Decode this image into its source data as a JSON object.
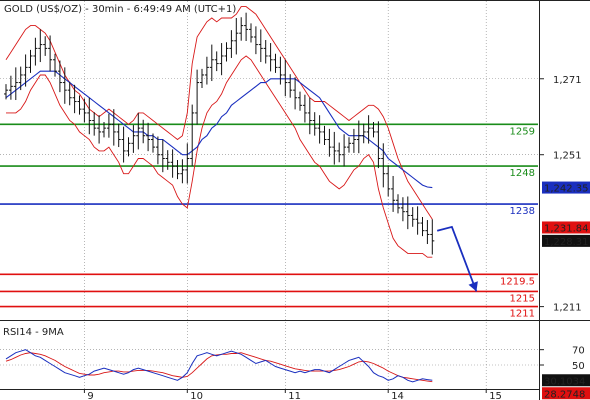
{
  "chart_data": [
    {
      "type": "candlestick",
      "title": "GOLD (US$/OZ) - 30min - 6:49:49 AM (UTC+1)",
      "ylim": [
        1208,
        1287
      ],
      "y_ticks": [
        {
          "value": 1271,
          "label": "1,271"
        },
        {
          "value": 1251,
          "label": "1,251"
        },
        {
          "value": 1211,
          "label": "1,211"
        }
      ],
      "x_ticks": [
        {
          "index": 16,
          "label": "9"
        },
        {
          "index": 37,
          "label": "10"
        },
        {
          "index": 57,
          "label": "11"
        },
        {
          "index": 78,
          "label": "14"
        },
        {
          "index": 98,
          "label": "15"
        }
      ],
      "levels": [
        {
          "name": "resistance-1259",
          "value": 1259,
          "label": "1259",
          "color": "#1a8c1a"
        },
        {
          "name": "resistance-1248",
          "value": 1248,
          "label": "1248",
          "color": "#1a8c1a"
        },
        {
          "name": "pivot-1238",
          "value": 1238,
          "label": "1238",
          "color": "#1a2fbf"
        },
        {
          "name": "support-1219-5",
          "value": 1219.5,
          "label": "1219.5",
          "color": "#e01010"
        },
        {
          "name": "support-1215",
          "value": 1215,
          "label": "1215",
          "color": "#e01010"
        },
        {
          "name": "support-1211",
          "value": 1211,
          "label": "1211",
          "color": "#e01010"
        }
      ],
      "price_badges": [
        {
          "name": "ma-badge",
          "value": 1242.35,
          "label": "1,242.35",
          "bg": "#1a2fbf",
          "fg": "#ffffff"
        },
        {
          "name": "bollinger-badge",
          "value": 1231.84,
          "label": "1,231.84",
          "bg": "#e01010",
          "fg": "#ffffff"
        },
        {
          "name": "last-price-badge",
          "value": 1228.31,
          "label": "1,228.31",
          "bg": "#111111",
          "fg": "#ffffff"
        }
      ],
      "close": [
        1268,
        1269,
        1270,
        1272,
        1274,
        1277,
        1279,
        1280,
        1279,
        1276,
        1273,
        1270,
        1268,
        1266,
        1265,
        1263,
        1262,
        1260,
        1258,
        1257,
        1258,
        1259,
        1257,
        1255,
        1252,
        1254,
        1256,
        1258,
        1256,
        1255,
        1253,
        1251,
        1250,
        1249,
        1248,
        1246,
        1247,
        1250,
        1262,
        1270,
        1272,
        1274,
        1276,
        1275,
        1277,
        1279,
        1281,
        1283,
        1285,
        1284,
        1282,
        1280,
        1279,
        1277,
        1276,
        1274,
        1272,
        1270,
        1268,
        1266,
        1264,
        1262,
        1260,
        1258,
        1257,
        1255,
        1253,
        1252,
        1251,
        1253,
        1254,
        1255,
        1256,
        1257,
        1258,
        1257,
        1250,
        1246,
        1242,
        1239,
        1237,
        1236,
        1235,
        1234,
        1233,
        1231,
        1230,
        1228.31
      ],
      "upper_band": [
        1276,
        1278,
        1280,
        1282,
        1284,
        1285,
        1285,
        1284,
        1283,
        1281,
        1278,
        1275,
        1272,
        1270,
        1268,
        1267,
        1265,
        1263,
        1262,
        1261,
        1262,
        1263,
        1262,
        1261,
        1260,
        1259,
        1260,
        1262,
        1262,
        1261,
        1260,
        1259,
        1258,
        1257,
        1256,
        1255,
        1256,
        1262,
        1275,
        1282,
        1284,
        1286,
        1287,
        1286,
        1287,
        1287,
        1287,
        1288,
        1290,
        1290,
        1289,
        1288,
        1286,
        1284,
        1282,
        1280,
        1278,
        1276,
        1274,
        1272,
        1270,
        1268,
        1266,
        1265,
        1265,
        1265,
        1264,
        1263,
        1262,
        1261,
        1260,
        1261,
        1262,
        1263,
        1264,
        1264,
        1263,
        1261,
        1258,
        1254,
        1250,
        1247,
        1244,
        1242,
        1240,
        1238,
        1236,
        1234
      ],
      "lower_band": [
        1262,
        1262,
        1262,
        1263,
        1265,
        1268,
        1270,
        1272,
        1272,
        1270,
        1267,
        1264,
        1262,
        1260,
        1259,
        1257,
        1256,
        1255,
        1253,
        1252,
        1252,
        1253,
        1251,
        1249,
        1246,
        1246,
        1248,
        1250,
        1250,
        1249,
        1248,
        1246,
        1245,
        1244,
        1243,
        1240,
        1238,
        1237,
        1244,
        1252,
        1258,
        1262,
        1264,
        1265,
        1267,
        1270,
        1272,
        1274,
        1276,
        1277,
        1276,
        1274,
        1272,
        1270,
        1268,
        1266,
        1264,
        1262,
        1260,
        1258,
        1255,
        1253,
        1251,
        1249,
        1248,
        1246,
        1244,
        1243,
        1242,
        1243,
        1245,
        1247,
        1248,
        1250,
        1251,
        1249,
        1242,
        1237,
        1233,
        1229,
        1227,
        1226,
        1225,
        1225,
        1225,
        1225,
        1224,
        1224
      ],
      "ma": [
        1266,
        1267,
        1268,
        1269,
        1270,
        1271,
        1272,
        1273,
        1273,
        1273,
        1273,
        1272,
        1271,
        1270,
        1269,
        1268,
        1267,
        1266,
        1265,
        1264,
        1263,
        1262,
        1261,
        1260,
        1259,
        1258,
        1257,
        1257,
        1257,
        1256,
        1256,
        1255,
        1255,
        1254,
        1253,
        1252,
        1251,
        1251,
        1252,
        1253,
        1255,
        1256,
        1258,
        1259,
        1261,
        1262,
        1264,
        1265,
        1266,
        1267,
        1268,
        1269,
        1270,
        1270,
        1271,
        1271,
        1271,
        1271,
        1271,
        1271,
        1270,
        1269,
        1268,
        1267,
        1266,
        1264,
        1262,
        1260,
        1258,
        1257,
        1256,
        1256,
        1256,
        1256,
        1255,
        1254,
        1253,
        1252,
        1250,
        1249,
        1248,
        1247,
        1246,
        1245,
        1244,
        1243,
        1242.5,
        1242.35
      ],
      "projection": [
        {
          "index": 88,
          "value": 1231
        },
        {
          "index": 91,
          "value": 1232
        },
        {
          "index": 96,
          "value": 1215
        }
      ]
    },
    {
      "type": "line",
      "title": "RSI14 - 9MA",
      "ylim": [
        20,
        80
      ],
      "y_ticks": [
        {
          "value": 70,
          "label": "70"
        },
        {
          "value": 50,
          "label": "50"
        }
      ],
      "rsi_badges": [
        {
          "name": "rsi-badge",
          "value": 30.1034,
          "label": "30.1034",
          "bg": "#111111",
          "fg": "#ffffff"
        },
        {
          "name": "rsi-ma-badge",
          "value": 28.2748,
          "label": "28.2748",
          "bg": "#e01010",
          "fg": "#ffffff"
        }
      ],
      "rsi": [
        58,
        62,
        66,
        68,
        70,
        66,
        62,
        60,
        56,
        52,
        48,
        44,
        40,
        38,
        36,
        34,
        36,
        38,
        42,
        44,
        46,
        44,
        42,
        40,
        38,
        40,
        44,
        46,
        44,
        42,
        40,
        38,
        36,
        34,
        32,
        30,
        34,
        40,
        52,
        62,
        64,
        66,
        64,
        62,
        64,
        66,
        68,
        66,
        64,
        60,
        56,
        52,
        54,
        56,
        52,
        48,
        46,
        44,
        42,
        40,
        42,
        40,
        42,
        44,
        44,
        42,
        40,
        44,
        48,
        52,
        56,
        58,
        60,
        54,
        48,
        40,
        36,
        34,
        30,
        32,
        36,
        34,
        30,
        28,
        30,
        32,
        31,
        30.1034
      ],
      "rsi_ma": [
        55,
        57,
        60,
        63,
        65,
        66,
        65,
        64,
        62,
        59,
        56,
        52,
        48,
        45,
        42,
        39,
        38,
        37,
        37,
        38,
        40,
        41,
        42,
        42,
        41,
        41,
        42,
        43,
        43,
        43,
        42,
        41,
        40,
        38,
        36,
        35,
        34,
        35,
        40,
        46,
        52,
        58,
        62,
        63,
        64,
        64,
        65,
        65,
        66,
        64,
        62,
        60,
        58,
        56,
        55,
        53,
        51,
        49,
        47,
        45,
        44,
        43,
        42,
        42,
        42,
        42,
        42,
        43,
        44,
        46,
        48,
        51,
        54,
        55,
        54,
        52,
        49,
        46,
        42,
        39,
        36,
        34,
        33,
        32,
        31,
        30,
        29,
        28.2748
      ]
    }
  ],
  "colors": {
    "candle": "#111111",
    "ma": "#1a2fbf",
    "band": "#d81818",
    "rsi": "#1a2fbf",
    "rsi_ma": "#d81818",
    "grid": "#888888",
    "axis": "#222222"
  }
}
